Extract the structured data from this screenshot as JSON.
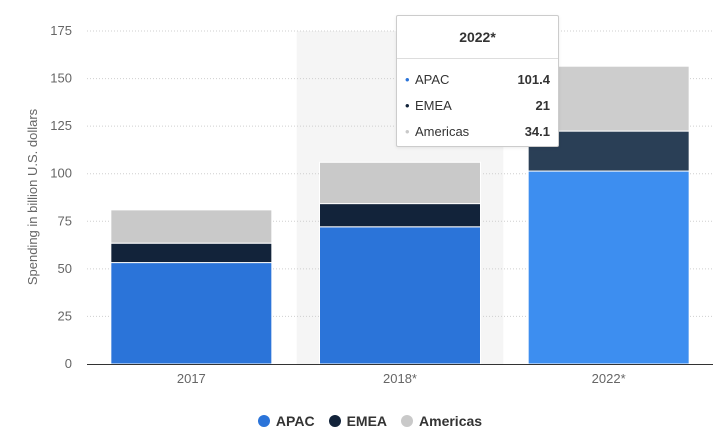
{
  "chart_data": {
    "type": "bar",
    "stacked": true,
    "categories": [
      "2017",
      "2018*",
      "2022*"
    ],
    "series": [
      {
        "name": "APAC",
        "values": [
          53.3,
          72.1,
          101.4
        ],
        "color": "#2b74d9"
      },
      {
        "name": "EMEA",
        "values": [
          10.2,
          12.2,
          21
        ],
        "color": "#12233a"
      },
      {
        "name": "Americas",
        "values": [
          17.5,
          21.7,
          34.1
        ],
        "color": "#c9c9c9"
      }
    ],
    "highlighted_category_index": 2,
    "highlight_colors": [
      "#3d8ef0",
      "#2a3f56",
      "#cdcdcd"
    ],
    "ylabel": "Spending in billion U.S. dollars",
    "xlabel": "",
    "ylim": [
      0,
      175
    ],
    "yticks": [
      0,
      25,
      50,
      75,
      100,
      125,
      150,
      175
    ],
    "grid": true,
    "legend_position": "bottom"
  },
  "legend": [
    {
      "label": "APAC",
      "color": "#2b74d9"
    },
    {
      "label": "EMEA",
      "color": "#12233a"
    },
    {
      "label": "Americas",
      "color": "#c9c9c9"
    }
  ],
  "tooltip": {
    "title": "2022*",
    "rows": [
      {
        "name": "APAC",
        "value": "101.4",
        "color": "#2b74d9"
      },
      {
        "name": "EMEA",
        "value": "21",
        "color": "#12233a"
      },
      {
        "name": "Americas",
        "value": "34.1",
        "color": "#c9c9c9"
      }
    ]
  }
}
